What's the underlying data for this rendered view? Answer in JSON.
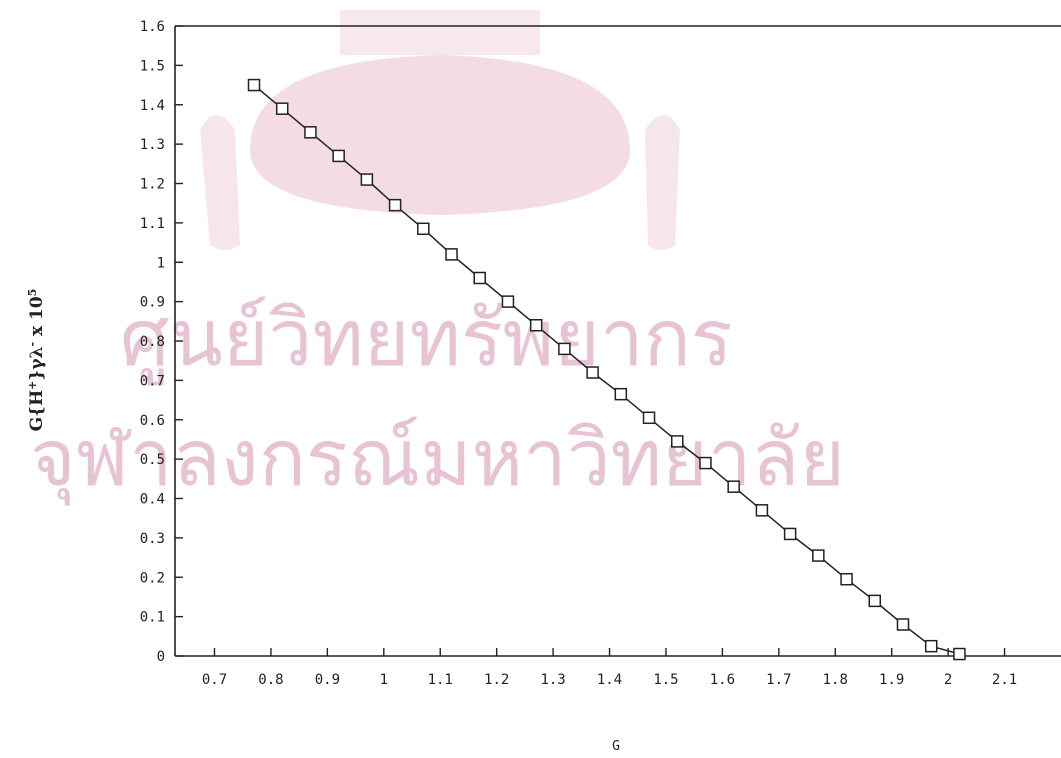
{
  "chart_data": {
    "type": "line",
    "xlabel": "G",
    "ylabel_main": "G{H",
    "ylabel_sup1": "+",
    "ylabel_mid": "}γλ",
    "ylabel_sup2": "-",
    "ylabel_end": " x 10",
    "ylabel_sup3": "5",
    "xlim": [
      0.63,
      2.2
    ],
    "ylim": [
      0,
      1.6
    ],
    "x_ticks": [
      "0.7",
      "0.8",
      "0.9",
      "1",
      "1.1",
      "1.2",
      "1.3",
      "1.4",
      "1.5",
      "1.6",
      "1.7",
      "1.8",
      "1.9",
      "2",
      "2.1"
    ],
    "y_ticks": [
      "0",
      "0.1",
      "0.2",
      "0.3",
      "0.4",
      "0.5",
      "0.6",
      "0.7",
      "0.8",
      "0.9",
      "1",
      "1.1",
      "1.2",
      "1.3",
      "1.4",
      "1.5",
      "1.6"
    ],
    "grid": false,
    "marker": "square",
    "series": [
      {
        "x": [
          0.77,
          0.82,
          0.87,
          0.92,
          0.97,
          1.02,
          1.07,
          1.12,
          1.17,
          1.22,
          1.27,
          1.32,
          1.37,
          1.42,
          1.47,
          1.52,
          1.57,
          1.62,
          1.67,
          1.72,
          1.77,
          1.82,
          1.87,
          1.92,
          1.97,
          2.02
        ],
        "y": [
          1.45,
          1.39,
          1.33,
          1.27,
          1.21,
          1.145,
          1.085,
          1.02,
          0.96,
          0.9,
          0.84,
          0.78,
          0.72,
          0.665,
          0.605,
          0.545,
          0.49,
          0.43,
          0.37,
          0.31,
          0.255,
          0.195,
          0.14,
          0.08,
          0.025,
          0.005
        ]
      }
    ]
  },
  "watermark": {
    "line1": "ศูนย์วิทยทรัพยากร",
    "line2": "จุฬาลงกรณ์มหาวิทยาลัย"
  },
  "colors": {
    "ink": "#222222",
    "watermark_text": "#e7c3d3",
    "watermark_seal": "#f3dde2"
  }
}
